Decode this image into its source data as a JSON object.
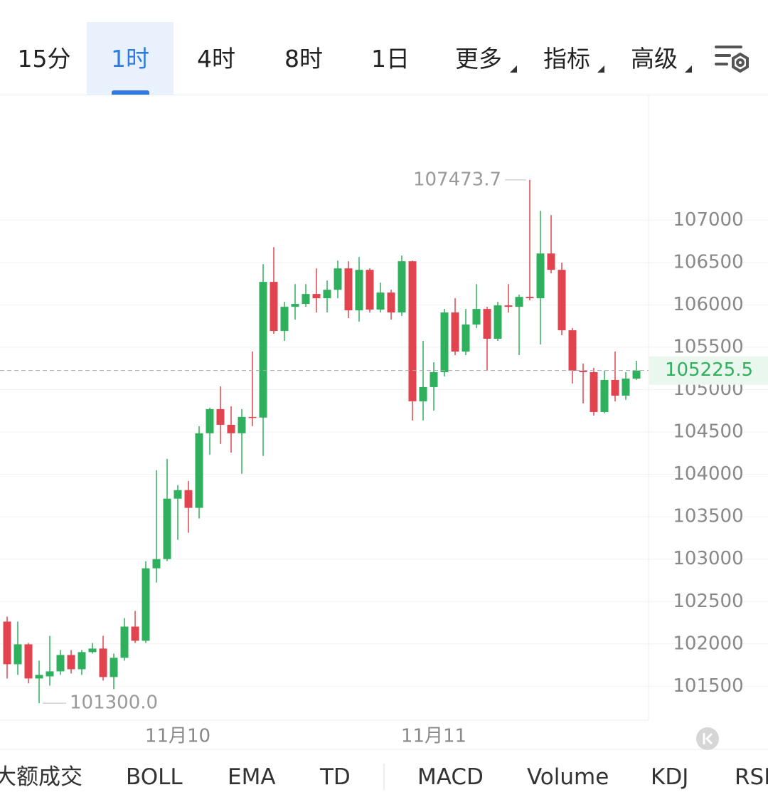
{
  "tabs": [
    "15分",
    "1时",
    "4时",
    "8时",
    "1日",
    "更多",
    "指标",
    "高级"
  ],
  "indicators": [
    "大额成交",
    "BOLL",
    "EMA",
    "TD",
    "MACD",
    "Volume",
    "KDJ",
    "RSI"
  ],
  "chart_data": {
    "type": "candlestick",
    "categories": [
      null,
      null,
      null,
      null,
      null,
      null,
      null,
      null,
      null,
      null,
      null,
      null,
      null,
      null,
      null,
      null,
      "11月10",
      null,
      null,
      null,
      null,
      null,
      null,
      null,
      null,
      null,
      null,
      null,
      null,
      null,
      null,
      null,
      null,
      null,
      null,
      null,
      null,
      null,
      null,
      null,
      "11月11",
      null,
      null,
      null,
      null,
      null,
      null,
      null,
      null,
      null,
      null,
      null,
      null,
      null,
      null,
      null,
      null,
      null,
      null,
      null
    ],
    "open": [
      102263,
      101760,
      101995,
      101592,
      101617,
      101676,
      101869,
      101701,
      101903,
      101945,
      101609,
      101836,
      102204,
      102037,
      102892,
      103001,
      103714,
      103814,
      103605,
      104485,
      104770,
      104585,
      104485,
      104678,
      104670,
      106271,
      105692,
      105977,
      106011,
      106128,
      106078,
      106178,
      106430,
      105935,
      106413,
      105944,
      106145,
      105910,
      106514,
      104862,
      105030,
      105206,
      105910,
      105449,
      105768,
      105952,
      105600,
      105994,
      105977,
      106094,
      106078,
      106606,
      106413,
      105700,
      105223,
      105206,
      104736,
      105114,
      104929,
      105130
    ],
    "high": [
      102322,
      102263,
      102011,
      101802,
      102095,
      101928,
      101928,
      101928,
      102011,
      102095,
      101886,
      102305,
      102389,
      102976,
      104049,
      104183,
      103873,
      103923,
      104569,
      104787,
      105038,
      104803,
      104770,
      105449,
      106480,
      106681,
      106036,
      106245,
      106245,
      106430,
      106287,
      106522,
      106514,
      106564,
      106430,
      106262,
      106178,
      106581,
      106522,
      105575,
      105323,
      105952,
      106078,
      105952,
      106245,
      105977,
      106036,
      106245,
      106120,
      107473.7,
      107109,
      107059,
      106497,
      105726,
      105307,
      105256,
      105223,
      105449,
      105206,
      105340
    ],
    "low": [
      101592,
      101634,
      101534,
      101300,
      101508,
      101634,
      101651,
      101634,
      101886,
      101567,
      101466,
      101802,
      102011,
      102011,
      102724,
      102976,
      103227,
      103311,
      103479,
      104233,
      104359,
      104258,
      104007,
      104569,
      104217,
      105659,
      105575,
      105826,
      105977,
      105910,
      105910,
      106078,
      105843,
      105801,
      105910,
      105910,
      105826,
      105868,
      104636,
      104636,
      104753,
      105156,
      105407,
      105407,
      105726,
      105223,
      105575,
      105910,
      105407,
      106053,
      105533,
      106371,
      105642,
      105072,
      104837,
      104694,
      104720,
      104862,
      104879,
      105114
    ],
    "close": [
      101760,
      101995,
      101592,
      101634,
      101676,
      101869,
      101701,
      101903,
      101945,
      101609,
      101836,
      102204,
      102037,
      102892,
      103001,
      103714,
      103814,
      103605,
      104485,
      104770,
      104585,
      104485,
      104678,
      104670,
      106271,
      105692,
      105977,
      106011,
      106128,
      106078,
      106178,
      106430,
      105935,
      106413,
      105944,
      106145,
      105910,
      106514,
      104862,
      105030,
      105206,
      105910,
      105449,
      105768,
      105952,
      105600,
      105994,
      105977,
      106094,
      106078,
      106606,
      106413,
      105700,
      105223,
      105206,
      104736,
      105114,
      104929,
      105130,
      105225.5
    ],
    "up_color": "#2eb05c",
    "down_color": "#e2444f",
    "ylim": [
      101100,
      108480
    ],
    "yticks": [
      101500,
      102000,
      102500,
      103000,
      103500,
      104000,
      104500,
      105000,
      105500,
      106000,
      106500,
      107000
    ],
    "grid": true,
    "last_price": 105225.5,
    "high_label": "107473.7",
    "low_label": "101300.0"
  }
}
